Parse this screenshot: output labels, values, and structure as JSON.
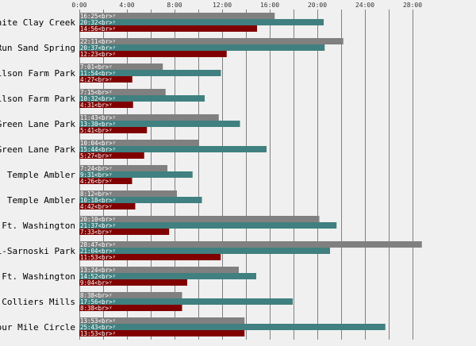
{
  "chart_data": {
    "type": "bar",
    "orientation": "horizontal",
    "x_unit": "hours:minutes",
    "xlim": [
      "0:00",
      "29:00"
    ],
    "x_ticks": [
      "0:00",
      "4:00",
      "8:00",
      "12:00",
      "16:00",
      "20:00",
      "24:00",
      "28:00"
    ],
    "grid": true,
    "label_suffix": "<br>",
    "categories": [
      "White Clay Creek",
      "Run Sand Spring",
      "Wilson Farm Park",
      "Wilson Farm Park",
      "Green Lane Park",
      "Green Lane Park",
      "Temple Ambler",
      "Temple Ambler",
      "Ft. Washington",
      "li-Sarnoski Park",
      "Ft. Washington",
      "Colliers Mills",
      "Four Mile Circle"
    ],
    "series": [
      {
        "color": "#808080",
        "values": [
          "16:25",
          "22:11",
          "7:01",
          "7:15",
          "11:43",
          "10:04",
          "7:24",
          "8:12",
          "20:10",
          "28:47",
          "13:24",
          "8:38",
          "13:53"
        ]
      },
      {
        "color": "#408080",
        "values": [
          "20:32",
          "20:37",
          "11:54",
          "10:32",
          "13:30",
          "15:44",
          "9:31",
          "10:18",
          "21:37",
          "21:04",
          "14:52",
          "17:56",
          "25:43"
        ]
      },
      {
        "color": "#800000",
        "values": [
          "14:56",
          "12:23",
          "4:27",
          "4:31",
          "5:41",
          "5:27",
          "4:26",
          "4:42",
          "7:33",
          "11:53",
          "9:04",
          "8:38",
          "13:53"
        ]
      }
    ]
  }
}
